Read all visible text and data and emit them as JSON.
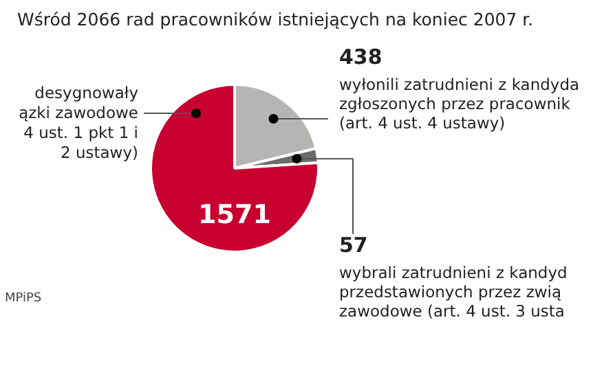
{
  "chart_data": {
    "type": "pie",
    "title": "Wśród 2066 rad pracowników istniejących na koniec 2007 r.",
    "categories": [
      "wyłonili zatrudnieni z kandyda\nzgłoszonych przez pracownik\n(art. 4 ust. 4 ustawy)",
      "wybrali zatrudnieni z kandyd\nprzedstawionych przez zwią\nzawodowe (art. 4 ust. 3 usta",
      "desygnowały\nązki zawodowe\n4 ust. 1 pkt 1 i\n2 ustawy)"
    ],
    "values": [
      438,
      57,
      1571
    ],
    "colors": [
      "#b5b5b3",
      "#6b6b6b",
      "#c8002f"
    ],
    "data_labels": true,
    "annotations": [
      "MPiPS"
    ]
  }
}
